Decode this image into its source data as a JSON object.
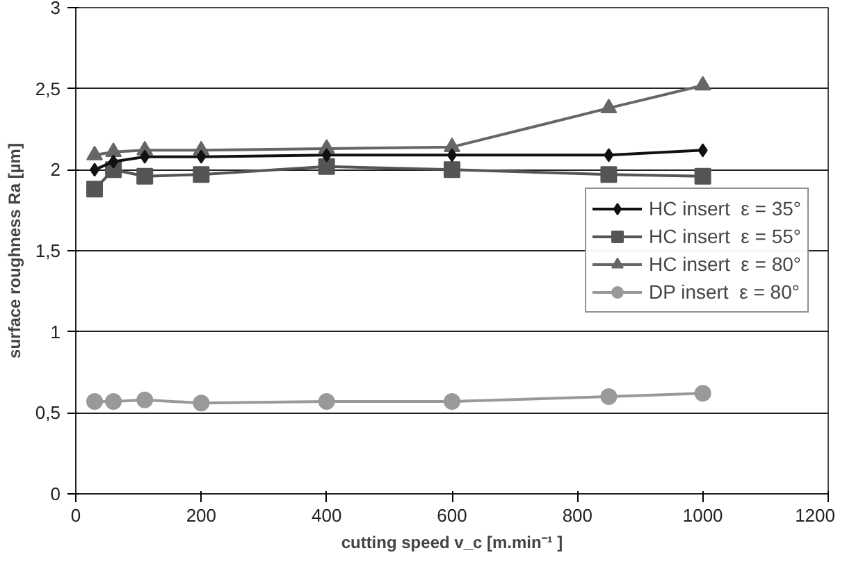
{
  "chart_data": {
    "type": "line",
    "xlabel": "cutting speed v_c [m.min⁻¹ ]",
    "ylabel": "surface roughness Ra [µm]",
    "x": [
      30,
      60,
      110,
      200,
      400,
      600,
      850,
      1000
    ],
    "xlim": [
      0,
      1200
    ],
    "xticks": [
      0,
      200,
      400,
      600,
      800,
      1000,
      1200
    ],
    "ylim": [
      0,
      3
    ],
    "yticks": [
      0,
      {
        "value": 0.5,
        "label": "0,5"
      },
      1,
      {
        "value": 1.5,
        "label": "1,5"
      },
      2,
      {
        "value": 2.5,
        "label": "2,5"
      },
      3
    ],
    "grid": "y",
    "legend": "right",
    "series": [
      {
        "name": "HC insert  ε = 35°",
        "color": "#111111",
        "marker": "diamond",
        "values": [
          2.0,
          2.05,
          2.08,
          2.08,
          2.09,
          2.09,
          2.09,
          2.12
        ]
      },
      {
        "name": "HC insert  ε = 55°",
        "color": "#555555",
        "marker": "square",
        "values": [
          1.88,
          2.0,
          1.96,
          1.97,
          2.02,
          2.0,
          1.97,
          1.96
        ]
      },
      {
        "name": "HC insert  ε = 80°",
        "color": "#666666",
        "marker": "triangle",
        "values": [
          2.09,
          2.11,
          2.12,
          2.12,
          2.13,
          2.14,
          2.38,
          2.52
        ]
      },
      {
        "name": "DP insert  ε = 80°",
        "color": "#999999",
        "marker": "circle",
        "values": [
          0.57,
          0.57,
          0.58,
          0.56,
          0.57,
          0.57,
          0.6,
          0.62
        ]
      }
    ]
  }
}
